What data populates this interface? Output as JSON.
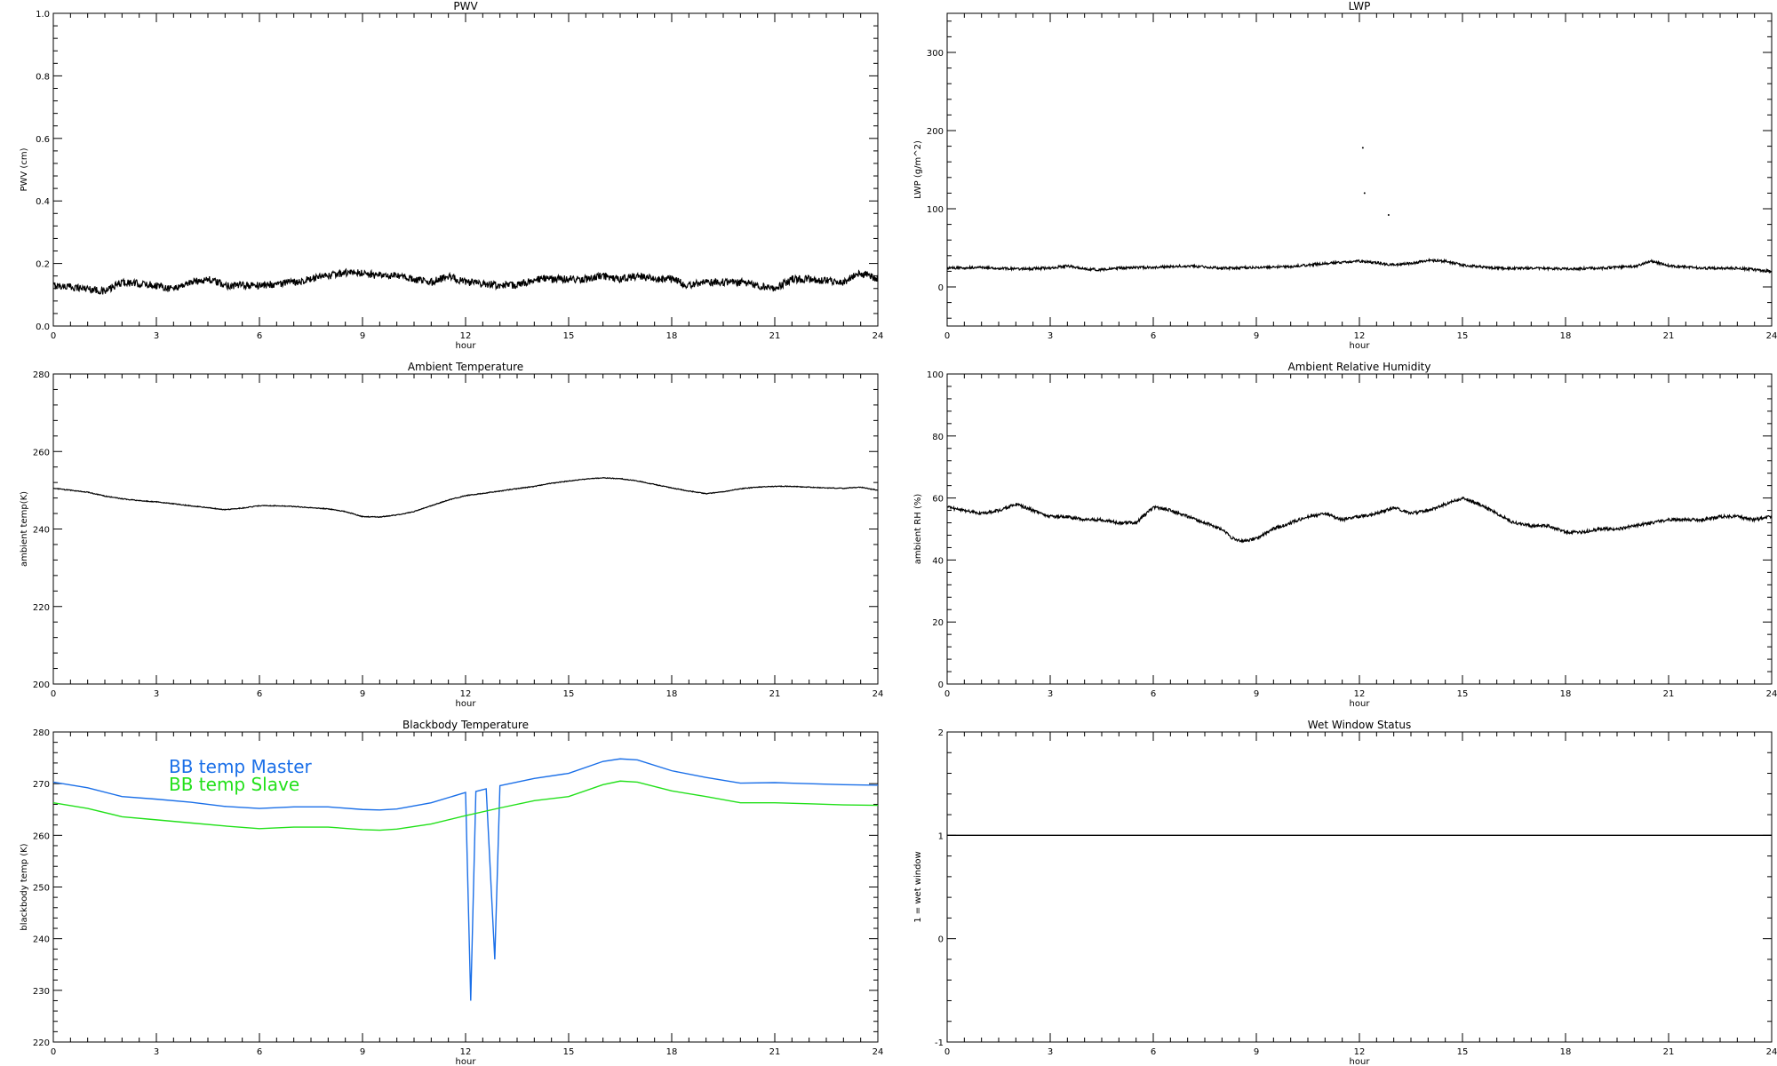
{
  "colors": {
    "background": "#ffffff",
    "axes": "#000000",
    "bb_master": "#1a6fe8",
    "bb_slave": "#22e01a",
    "data": "#000000"
  },
  "chart_data": [
    {
      "id": "pwv",
      "type": "line",
      "title": "PWV",
      "xlabel": "hour",
      "ylabel": "PWV (cm)",
      "xlim": [
        0,
        24
      ],
      "ylim": [
        0,
        1.0
      ],
      "xticks": [
        "0",
        "3",
        "6",
        "9",
        "12",
        "15",
        "18",
        "21",
        "24"
      ],
      "yticks": [
        "0.0",
        "0.2",
        "0.4",
        "0.6",
        "0.8",
        "1.0"
      ],
      "ytick_values": [
        0,
        0.2,
        0.4,
        0.6,
        0.8,
        1.0
      ],
      "noise": 0.012,
      "series": [
        {
          "color": "#000000",
          "x": [
            0,
            1,
            1.5,
            2,
            3,
            3.5,
            4,
            4.5,
            5,
            6,
            7,
            7.5,
            8,
            8.5,
            9,
            9.5,
            10,
            11,
            11.5,
            12,
            13,
            13.5,
            14,
            15,
            15.5,
            16,
            16.5,
            17,
            17.5,
            18,
            18.5,
            19,
            20,
            20.5,
            21,
            21.5,
            22,
            23,
            23.5,
            24
          ],
          "y": [
            0.13,
            0.12,
            0.11,
            0.14,
            0.13,
            0.12,
            0.14,
            0.15,
            0.13,
            0.13,
            0.14,
            0.15,
            0.16,
            0.17,
            0.17,
            0.16,
            0.16,
            0.14,
            0.16,
            0.14,
            0.13,
            0.13,
            0.15,
            0.15,
            0.15,
            0.16,
            0.15,
            0.16,
            0.15,
            0.15,
            0.13,
            0.14,
            0.14,
            0.13,
            0.12,
            0.15,
            0.15,
            0.14,
            0.17,
            0.15
          ]
        }
      ]
    },
    {
      "id": "lwp",
      "type": "line",
      "title": "LWP",
      "xlabel": "hour",
      "ylabel": "LWP (g/m^2)",
      "xlim": [
        0,
        24
      ],
      "ylim": [
        -50,
        350
      ],
      "xticks": [
        "0",
        "3",
        "6",
        "9",
        "12",
        "15",
        "18",
        "21",
        "24"
      ],
      "yticks": [
        "0",
        "100",
        "200",
        "300"
      ],
      "ytick_values": [
        0,
        100,
        200,
        300
      ],
      "noise": 1.6,
      "series": [
        {
          "color": "#000000",
          "x": [
            0,
            1,
            2,
            3,
            3.5,
            4,
            4.5,
            5,
            6,
            7,
            8,
            9,
            10,
            11,
            12,
            12.5,
            13,
            13.5,
            14,
            14.5,
            15,
            16,
            17,
            18,
            19,
            20,
            20.5,
            21,
            22,
            23,
            24
          ],
          "y": [
            24,
            25,
            23,
            24,
            27,
            23,
            22,
            24,
            25,
            27,
            24,
            25,
            26,
            30,
            33,
            31,
            28,
            30,
            34,
            33,
            28,
            24,
            24,
            23,
            24,
            26,
            33,
            27,
            24,
            24,
            20
          ]
        }
      ],
      "points": [
        {
          "x": 12.1,
          "y": 178
        },
        {
          "x": 12.15,
          "y": 120
        },
        {
          "x": 12.85,
          "y": 92
        }
      ]
    },
    {
      "id": "ambient_temp",
      "type": "line",
      "title": "Ambient Temperature",
      "xlabel": "hour",
      "ylabel": "ambient temp(K)",
      "xlim": [
        0,
        24
      ],
      "ylim": [
        200,
        280
      ],
      "xticks": [
        "0",
        "3",
        "6",
        "9",
        "12",
        "15",
        "18",
        "21",
        "24"
      ],
      "yticks": [
        "200",
        "220",
        "240",
        "260",
        "280"
      ],
      "ytick_values": [
        200,
        220,
        240,
        260,
        280
      ],
      "noise": 0.1,
      "series": [
        {
          "color": "#000000",
          "x": [
            0,
            0.5,
            1,
            1.5,
            2,
            2.5,
            3,
            3.5,
            4,
            4.5,
            5,
            5.5,
            6,
            6.5,
            7,
            7.5,
            8,
            8.5,
            9,
            9.5,
            10,
            10.5,
            11,
            11.5,
            12,
            12.5,
            13,
            13.5,
            14,
            14.5,
            15,
            15.5,
            16,
            16.5,
            17,
            17.5,
            18,
            18.5,
            19,
            19.5,
            20,
            20.5,
            21,
            21.5,
            22,
            22.5,
            23,
            23.5,
            24
          ],
          "y": [
            250.5,
            250,
            249.5,
            248.5,
            247.8,
            247.3,
            247,
            246.5,
            246,
            245.5,
            245,
            245.4,
            246,
            246,
            245.8,
            245.5,
            245.2,
            244.5,
            243.2,
            243.1,
            243.6,
            244.5,
            246,
            247.5,
            248.6,
            249.2,
            249.8,
            250.4,
            251,
            251.8,
            252.4,
            252.9,
            253.2,
            253,
            252.4,
            251.5,
            250.6,
            249.8,
            249.1,
            249.6,
            250.4,
            250.8,
            251,
            251,
            250.8,
            250.6,
            250.5,
            250.8,
            250
          ]
        }
      ]
    },
    {
      "id": "ambient_rh",
      "type": "line",
      "title": "Ambient Relative Humidity",
      "xlabel": "hour",
      "ylabel": "ambient RH (%)",
      "xlim": [
        0,
        24
      ],
      "ylim": [
        0,
        100
      ],
      "xticks": [
        "0",
        "3",
        "6",
        "9",
        "12",
        "15",
        "18",
        "21",
        "24"
      ],
      "yticks": [
        "0",
        "20",
        "40",
        "60",
        "80",
        "100"
      ],
      "ytick_values": [
        0,
        20,
        40,
        60,
        80,
        100
      ],
      "noise": 0.5,
      "series": [
        {
          "color": "#000000",
          "x": [
            0,
            0.5,
            1,
            1.5,
            2,
            2.5,
            3,
            3.5,
            4,
            4.5,
            5,
            5.5,
            6,
            6.5,
            7,
            7.5,
            8,
            8.3,
            8.6,
            9,
            9.5,
            10,
            10.5,
            11,
            11.5,
            12,
            12.5,
            13,
            13.5,
            14,
            14.5,
            15,
            15.5,
            16,
            16.5,
            17,
            17.5,
            18,
            18.5,
            19,
            19.5,
            20,
            20.5,
            21,
            21.5,
            22,
            22.5,
            23,
            23.5,
            24
          ],
          "y": [
            57,
            56,
            55,
            56,
            58,
            56,
            54,
            54,
            53,
            53,
            52,
            52,
            57,
            56,
            54,
            52,
            50,
            47,
            46,
            47,
            50,
            52,
            54,
            55,
            53,
            54,
            55,
            57,
            55,
            56,
            58,
            60,
            58,
            55,
            52,
            51,
            51,
            49,
            49,
            50,
            50,
            51,
            52,
            53,
            53,
            53,
            54,
            54,
            53,
            54
          ]
        }
      ]
    },
    {
      "id": "bb_temp",
      "type": "line",
      "title": "Blackbody Temperature",
      "xlabel": "hour",
      "ylabel": "blackbody temp (K)",
      "xlim": [
        0,
        24
      ],
      "ylim": [
        220,
        280
      ],
      "xticks": [
        "0",
        "3",
        "6",
        "9",
        "12",
        "15",
        "18",
        "21",
        "24"
      ],
      "yticks": [
        "220",
        "230",
        "240",
        "250",
        "260",
        "270",
        "280"
      ],
      "ytick_values": [
        220,
        230,
        240,
        250,
        260,
        270,
        280
      ],
      "noise": 0,
      "legend": [
        "BB temp Master",
        "BB temp Slave"
      ],
      "legend_placement": "upper-left",
      "series": [
        {
          "name": "BB temp Master",
          "color": "#1a6fe8",
          "x": [
            0,
            1,
            2,
            3,
            4,
            5,
            6,
            7,
            8,
            9,
            9.5,
            10,
            11,
            12,
            12.15,
            12.3,
            12.6,
            12.85,
            13,
            14,
            15,
            16,
            16.5,
            17,
            18,
            19,
            20,
            21,
            22,
            23,
            24
          ],
          "y": [
            270.3,
            269.2,
            267.5,
            267,
            266.4,
            265.6,
            265.2,
            265.5,
            265.5,
            265,
            264.9,
            265.1,
            266.3,
            268.3,
            228,
            268.5,
            269,
            236,
            269.6,
            271,
            272,
            274.3,
            274.8,
            274.6,
            272.5,
            271.2,
            270.1,
            270.2,
            270,
            269.8,
            269.7
          ]
        },
        {
          "name": "BB temp Slave",
          "color": "#22e01a",
          "x": [
            0,
            1,
            2,
            3,
            4,
            5,
            6,
            7,
            8,
            9,
            9.5,
            10,
            11,
            12,
            13,
            14,
            15,
            16,
            16.5,
            17,
            18,
            19,
            20,
            21,
            22,
            23,
            24
          ],
          "y": [
            266.3,
            265.2,
            263.6,
            263,
            262.4,
            261.8,
            261.3,
            261.6,
            261.6,
            261.1,
            261,
            261.2,
            262.2,
            263.8,
            265.3,
            266.7,
            267.5,
            269.8,
            270.5,
            270.3,
            268.6,
            267.5,
            266.3,
            266.3,
            266.1,
            265.9,
            265.8
          ]
        }
      ]
    },
    {
      "id": "wet_window",
      "type": "line",
      "title": "Wet Window Status",
      "xlabel": "hour",
      "ylabel": "1 = wet window",
      "xlim": [
        0,
        24
      ],
      "ylim": [
        -1,
        2
      ],
      "xticks": [
        "0",
        "3",
        "6",
        "9",
        "12",
        "15",
        "18",
        "21",
        "24"
      ],
      "yticks": [
        "-1",
        "0",
        "1",
        "2"
      ],
      "ytick_values": [
        -1,
        0,
        1,
        2
      ],
      "noise": 0,
      "series": [
        {
          "color": "#000000",
          "x": [
            0,
            24
          ],
          "y": [
            1,
            1
          ]
        }
      ]
    }
  ]
}
